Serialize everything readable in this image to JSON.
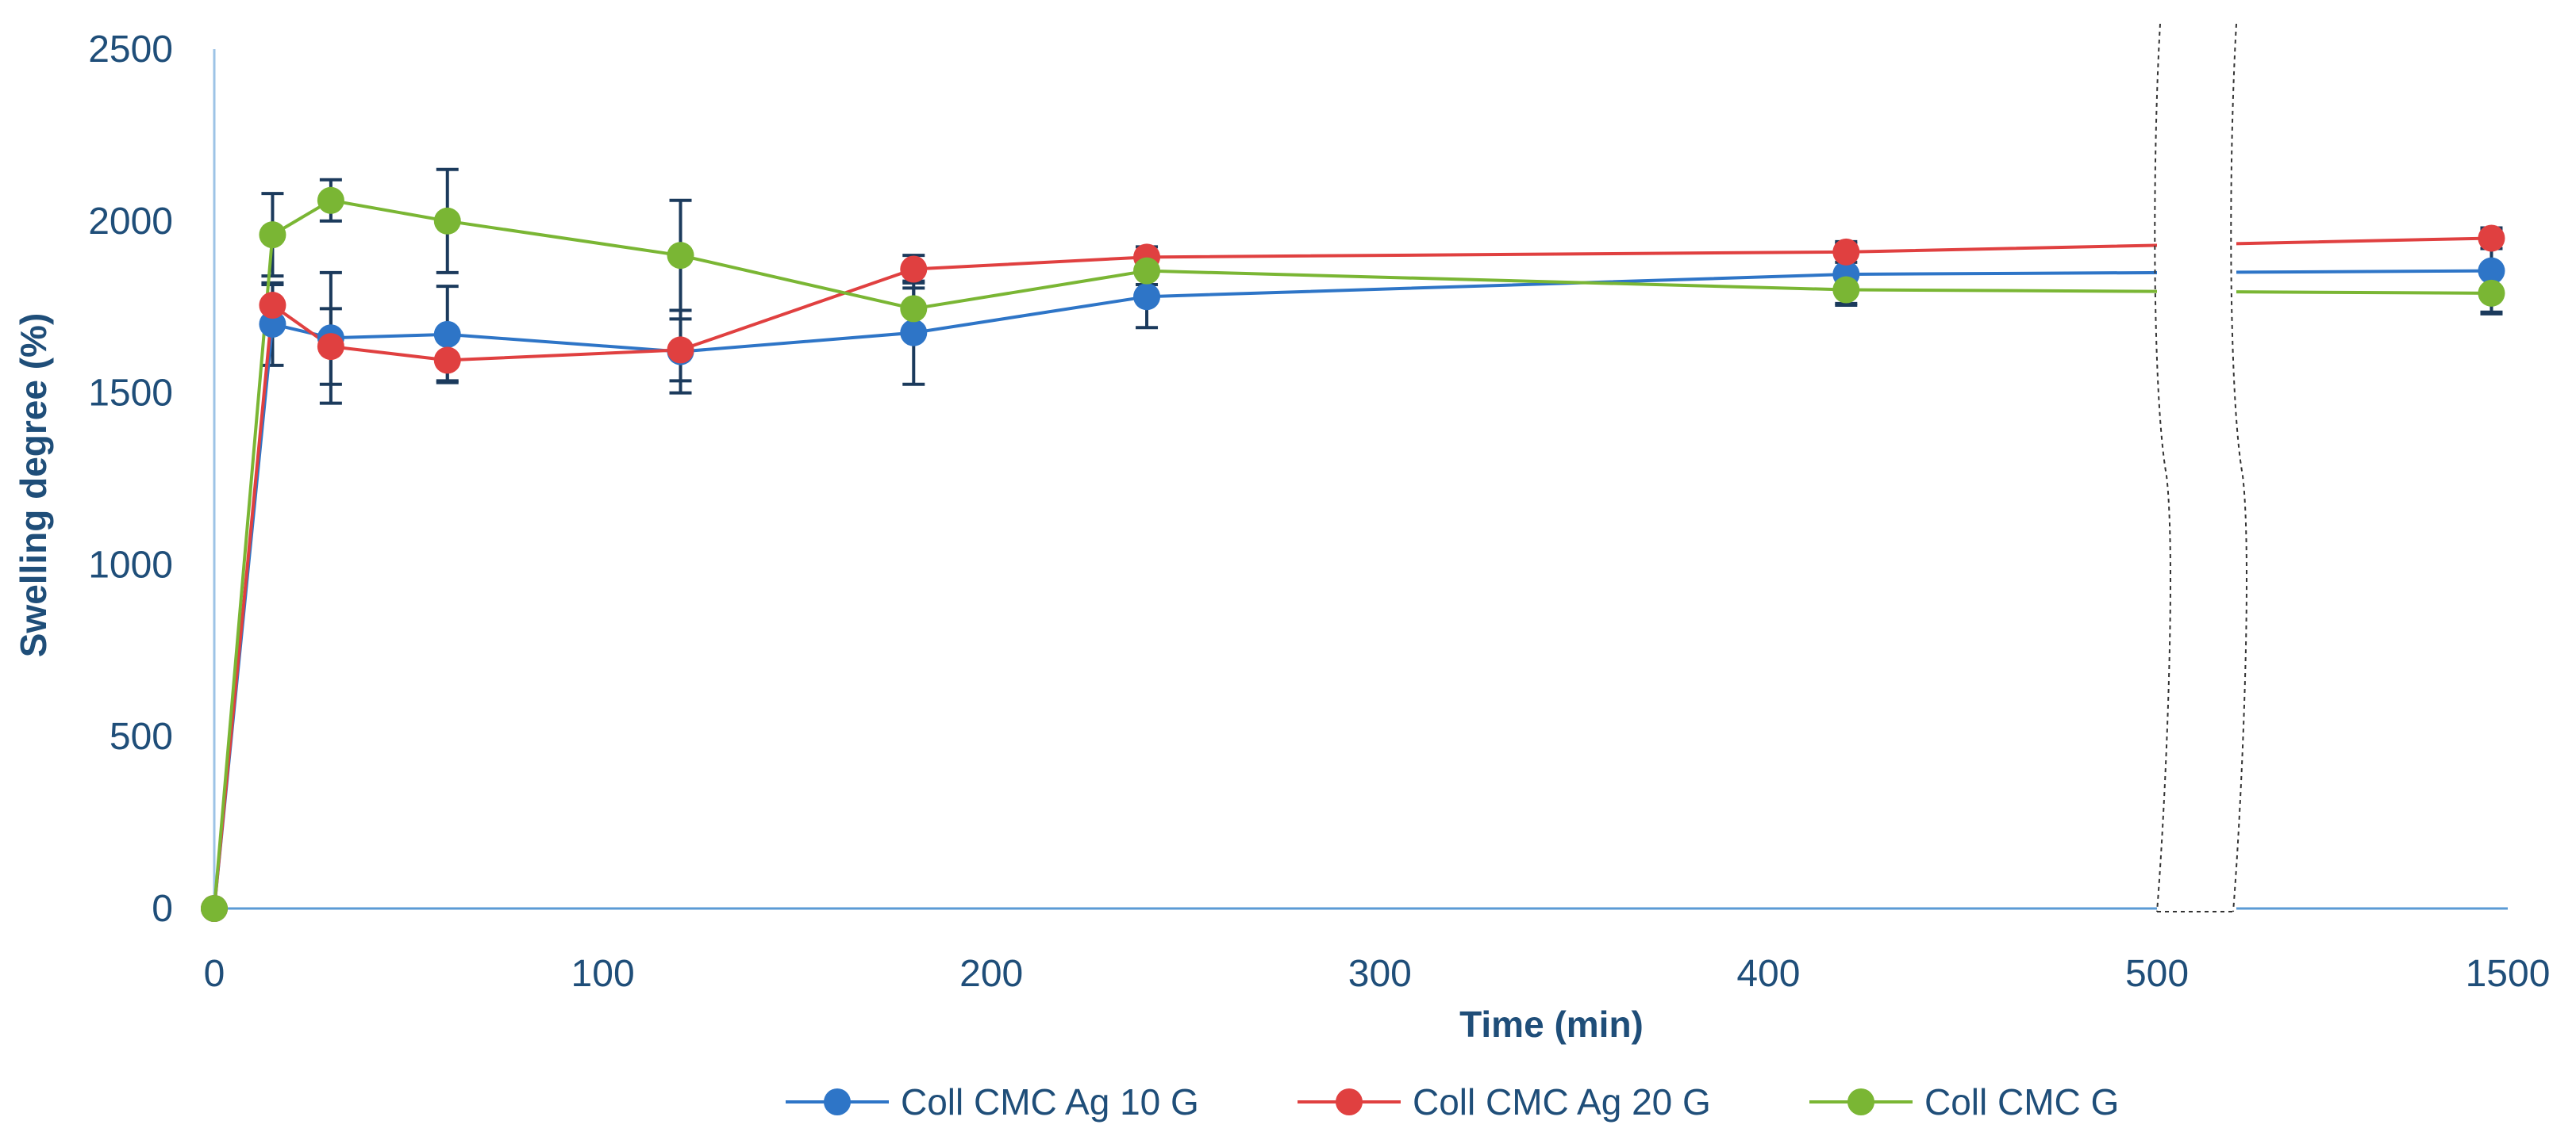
{
  "chart_data": {
    "type": "line",
    "title": "",
    "xlabel": "Time (min)",
    "ylabel": "Swelling degree (%)",
    "ylim": [
      0,
      2500
    ],
    "x_axis_break": "between 500 and 1500",
    "xticks": [
      {
        "value": 0,
        "label": "0"
      },
      {
        "value": 100,
        "label": "100"
      },
      {
        "value": 200,
        "label": "200"
      },
      {
        "value": 300,
        "label": "300"
      },
      {
        "value": 400,
        "label": "400"
      },
      {
        "value": 500,
        "label": "500"
      },
      {
        "value": 1500,
        "label": "1500"
      }
    ],
    "yticks": [
      {
        "value": 0,
        "label": "0"
      },
      {
        "value": 500,
        "label": "500"
      },
      {
        "value": 1000,
        "label": "1000"
      },
      {
        "value": 1500,
        "label": "1500"
      },
      {
        "value": 2000,
        "label": "2000"
      },
      {
        "value": 2500,
        "label": "2500"
      }
    ],
    "x": [
      0,
      15,
      30,
      60,
      120,
      180,
      240,
      420,
      1440
    ],
    "series": [
      {
        "name": "Coll CMC Ag 10 G",
        "color": "#2e75c7",
        "values": [
          0,
          1700,
          1660,
          1670,
          1620,
          1675,
          1780,
          1845,
          1855
        ],
        "errors": [
          0,
          120,
          190,
          140,
          120,
          150,
          90,
          90,
          120
        ]
      },
      {
        "name": "Coll CMC Ag 20 G",
        "color": "#e04040",
        "values": [
          0,
          1755,
          1635,
          1595,
          1625,
          1860,
          1895,
          1910,
          1950
        ],
        "errors": [
          0,
          60,
          110,
          60,
          90,
          40,
          30,
          30,
          30
        ]
      },
      {
        "name": "Coll CMC G",
        "color": "#7ab634",
        "values": [
          0,
          1960,
          2060,
          2000,
          1900,
          1745,
          1855,
          1800,
          1790
        ],
        "errors": [
          0,
          120,
          60,
          150,
          160,
          60,
          40,
          40,
          60
        ]
      }
    ],
    "legend": "bottom"
  }
}
